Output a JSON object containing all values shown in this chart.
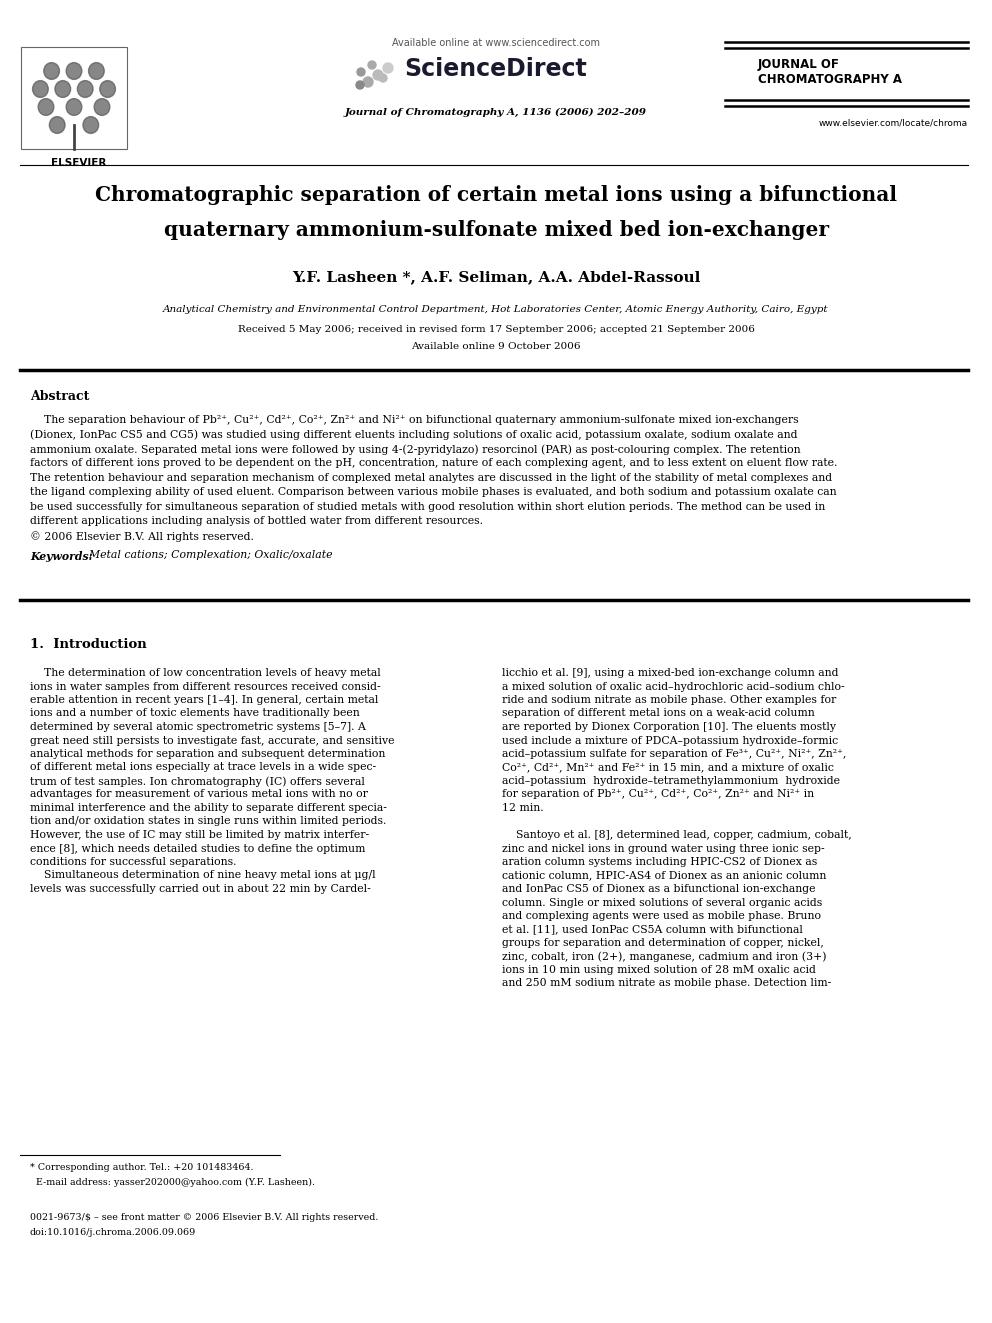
{
  "bg_color": "#ffffff",
  "title_line1": "Chromatographic separation of certain metal ions using a bifunctional",
  "title_line2": "quaternary ammonium-sulfonate mixed bed ion-exchanger",
  "authors": "Y.F. Lasheen *, A.F. Seliman, A.A. Abdel-Rassoul",
  "affiliation": "Analytical Chemistry and Environmental Control Department, Hot Laboratories Center, Atomic Energy Authority, Cairo, Egypt",
  "received": "Received 5 May 2006; received in revised form 17 September 2006; accepted 21 September 2006",
  "available": "Available online 9 October 2006",
  "journal_header": "Journal of Chromatography A, 1136 (2006) 202–209",
  "available_online": "Available online at www.sciencedirect.com",
  "journal_name_line1": "JOURNAL OF",
  "journal_name_line2": "CHROMATOGRAPHY A",
  "website": "www.elsevier.com/locate/chroma",
  "abstract_title": "Abstract",
  "keywords_label": "Keywords:",
  "keywords_text": "  Metal cations; Complexation; Oxalic/oxalate",
  "section1_title": "1.  Introduction",
  "footer_star": "* Corresponding author. Tel.: +20 101483464.",
  "footer_email": "  E-mail address: yasser202000@yahoo.com (Y.F. Lasheen).",
  "footer_issn": "0021-9673/$ – see front matter © 2006 Elsevier B.V. All rights reserved.",
  "footer_doi": "doi:10.1016/j.chroma.2006.09.069"
}
